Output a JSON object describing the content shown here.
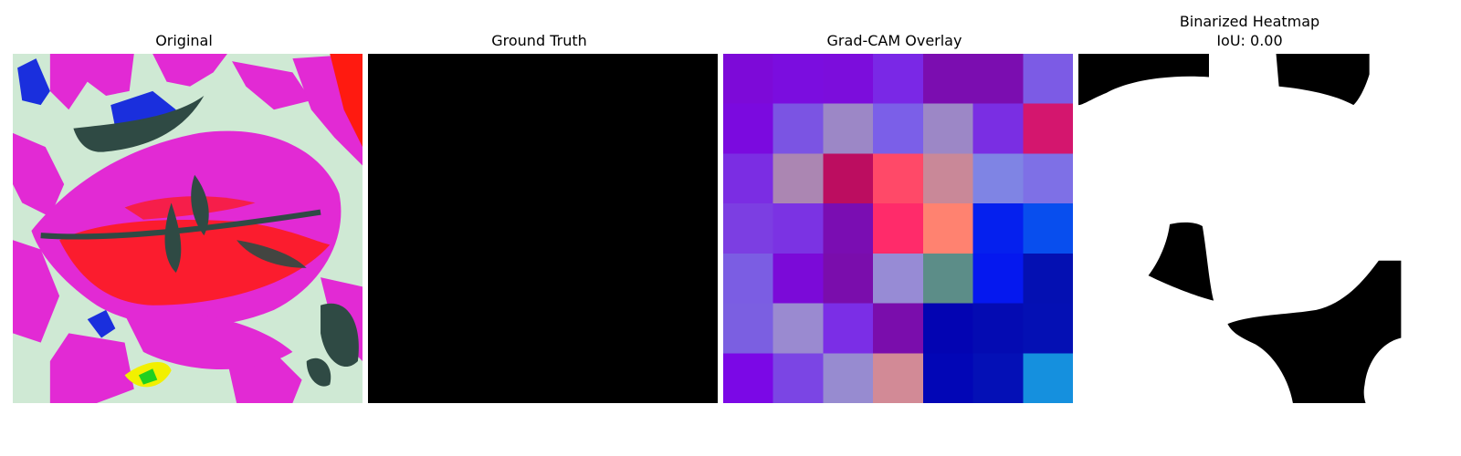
{
  "panels": [
    {
      "title": "Original",
      "image": "pink-leaf-photo"
    },
    {
      "title": "Ground Truth",
      "image": "empty-mask"
    },
    {
      "title": "Grad-CAM Overlay",
      "image": "heatmap-grid"
    },
    {
      "title": "Binarized Heatmap",
      "subtitle": "IoU: 0.00",
      "image": "binary-mask"
    }
  ],
  "gradcam_grid": [
    [
      "#7d0ad8",
      "#7b0ddf",
      "#7c0ddc",
      "#7a28e6",
      "#7b0db0",
      "#7b0db0",
      "#7c5be5"
    ],
    [
      "#7b0adf",
      "#7b54e3",
      "#9c87c6",
      "#7b5fe8",
      "#9c87c6",
      "#7a2ee3",
      "#d4166e"
    ],
    [
      "#7b2de3",
      "#ab86b2",
      "#bc0d60",
      "#ff4968",
      "#c98898",
      "#7f84e4",
      "#7e70e6"
    ],
    [
      "#7c3ee2",
      "#7b33e3",
      "#7a0db2",
      "#ff2b6a",
      "#ff8270",
      "#0520ee",
      "#084eee"
    ],
    [
      "#7b5de3",
      "#7b0ad8",
      "#7a0dac",
      "#978bd5",
      "#5c8d88",
      "#0518ef",
      "#0410b2"
    ],
    [
      "#7b5fe1",
      "#9a8ad0",
      "#7b2ee6",
      "#7a0dac",
      "#0304b2",
      "#040bb2",
      "#0410b4"
    ],
    [
      "#7b08e6",
      "#7b45e4",
      "#978bd0",
      "#d28a96",
      "#0206b6",
      "#0410b6",
      "#1590de"
    ]
  ],
  "colors": {
    "leaf": "#e22ad4",
    "background": "#cfe9d4",
    "hotspot": "#ff1a10",
    "shadow": "#2f4a44",
    "blue": "#1a2fdd",
    "yellow": "#f2f000",
    "green": "#20d020"
  }
}
